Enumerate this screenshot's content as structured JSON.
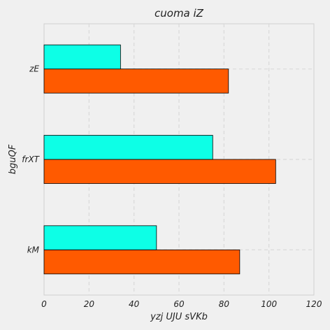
{
  "chart_data": {
    "type": "bar",
    "orientation": "horizontal",
    "title": "cuoma iZ",
    "xlabel": "yzj UJU sVKb",
    "ylabel": "bguQF",
    "categories": [
      "kM",
      "frXT",
      "zE"
    ],
    "series": [
      {
        "color": "#ff5a00",
        "values": [
          87,
          103,
          82
        ]
      },
      {
        "color": "#0dffe6",
        "values": [
          50,
          75,
          34
        ]
      }
    ],
    "xlim": [
      0,
      120
    ],
    "xticks": [
      0,
      20,
      40,
      60,
      80,
      100,
      120
    ],
    "grid": true,
    "legend": "none"
  }
}
